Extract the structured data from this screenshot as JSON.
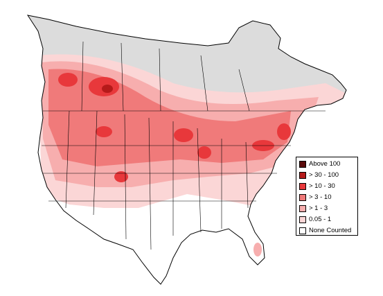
{
  "legend": {
    "items": [
      {
        "label": "Above 100",
        "color": "#5a0a0a"
      },
      {
        "label": "> 30 - 100",
        "color": "#b51a1a"
      },
      {
        "label": "> 10 - 30",
        "color": "#e8383b"
      },
      {
        "label": "> 3 - 10",
        "color": "#f07a7a"
      },
      {
        "label": "> 1 - 3",
        "color": "#f7aeae"
      },
      {
        "label": "0.05 - 1",
        "color": "#fbd6d6"
      },
      {
        "label": "None Counted",
        "color": "#ffffff"
      }
    ]
  },
  "colors": {
    "no_data": "#dcdcdc",
    "border": "#000000"
  }
}
